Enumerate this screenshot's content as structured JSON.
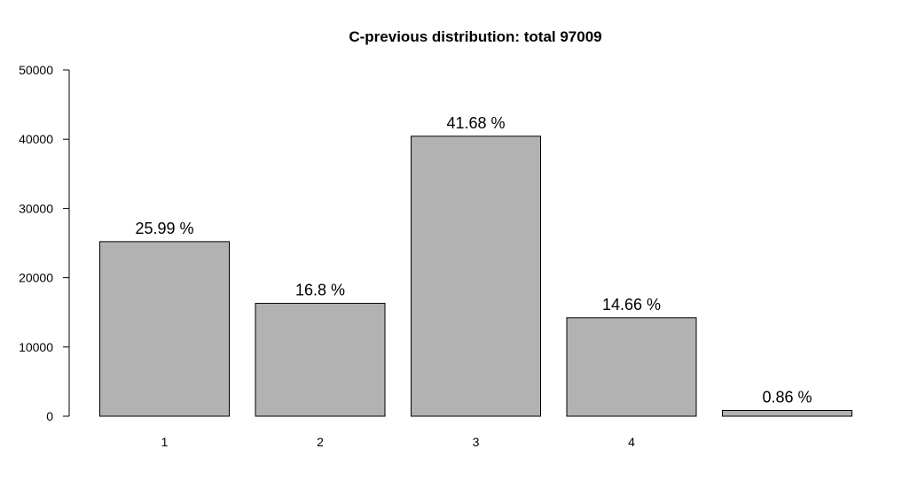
{
  "chart_data": {
    "type": "bar",
    "title": "C-previous distribution: total  97009",
    "xlabel": "",
    "ylabel": "",
    "categories": [
      "1",
      "2",
      "3",
      "4",
      ""
    ],
    "values": [
      25210,
      16300,
      40430,
      14220,
      830
    ],
    "data_labels": [
      "25.99 %",
      "16.8 %",
      "41.68 %",
      "14.66 %",
      "0.86 %"
    ],
    "ylim": [
      0,
      50000
    ],
    "yticks": [
      0,
      10000,
      20000,
      30000,
      40000,
      50000
    ],
    "ytick_labels": [
      "0",
      "10000",
      "20000",
      "30000",
      "40000",
      "50000"
    ],
    "grid": false,
    "bar_color": "#b2b2b2",
    "border_color": "#000000"
  }
}
